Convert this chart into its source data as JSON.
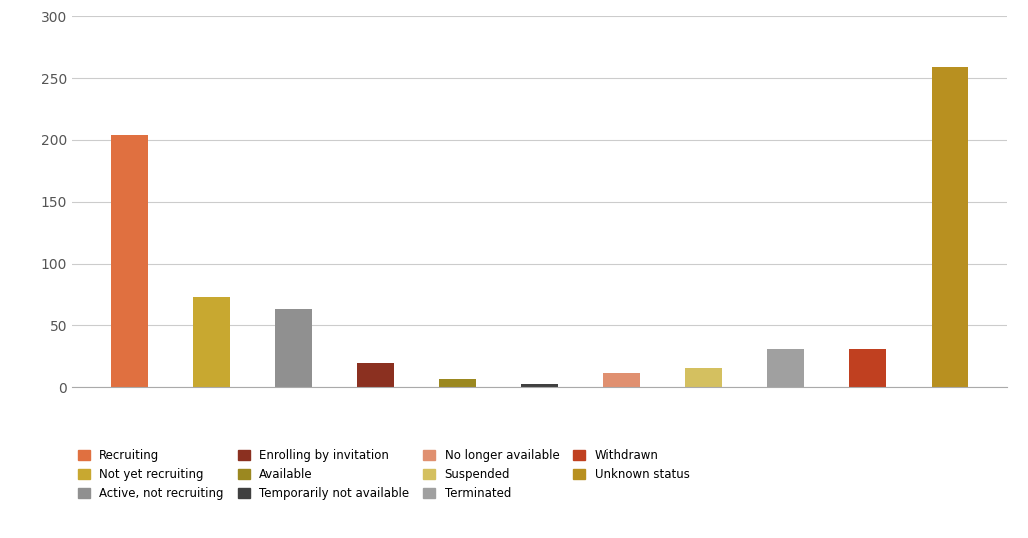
{
  "categories": [
    "Recruiting",
    "Not yet recruiting",
    "Active, not recruiting",
    "Enrolling by invitation",
    "Available",
    "Temporarily not available",
    "No longer available",
    "Suspended",
    "Terminated",
    "Withdrawn",
    "Unknown status"
  ],
  "values": [
    204,
    73,
    63,
    20,
    7,
    3,
    12,
    16,
    31,
    31,
    259
  ],
  "colors": [
    "#E07040",
    "#C8A830",
    "#909090",
    "#8B3020",
    "#9B8820",
    "#404040",
    "#E09070",
    "#D4C060",
    "#A0A0A0",
    "#C04020",
    "#B89020"
  ],
  "ylim": [
    0,
    300
  ],
  "yticks": [
    0,
    50,
    100,
    150,
    200,
    250,
    300
  ],
  "legend_labels": [
    "Recruiting",
    "Not yet recruiting",
    "Active, not recruiting",
    "Enrolling by invitation",
    "Available",
    "Temporarily not available",
    "No longer available",
    "Suspended",
    "Terminated",
    "Withdrawn",
    "Unknown status"
  ],
  "legend_order": [
    0,
    1,
    2,
    3,
    4,
    5,
    6,
    7,
    8,
    9,
    10
  ],
  "background_color": "#ffffff",
  "grid_color": "#cccccc"
}
